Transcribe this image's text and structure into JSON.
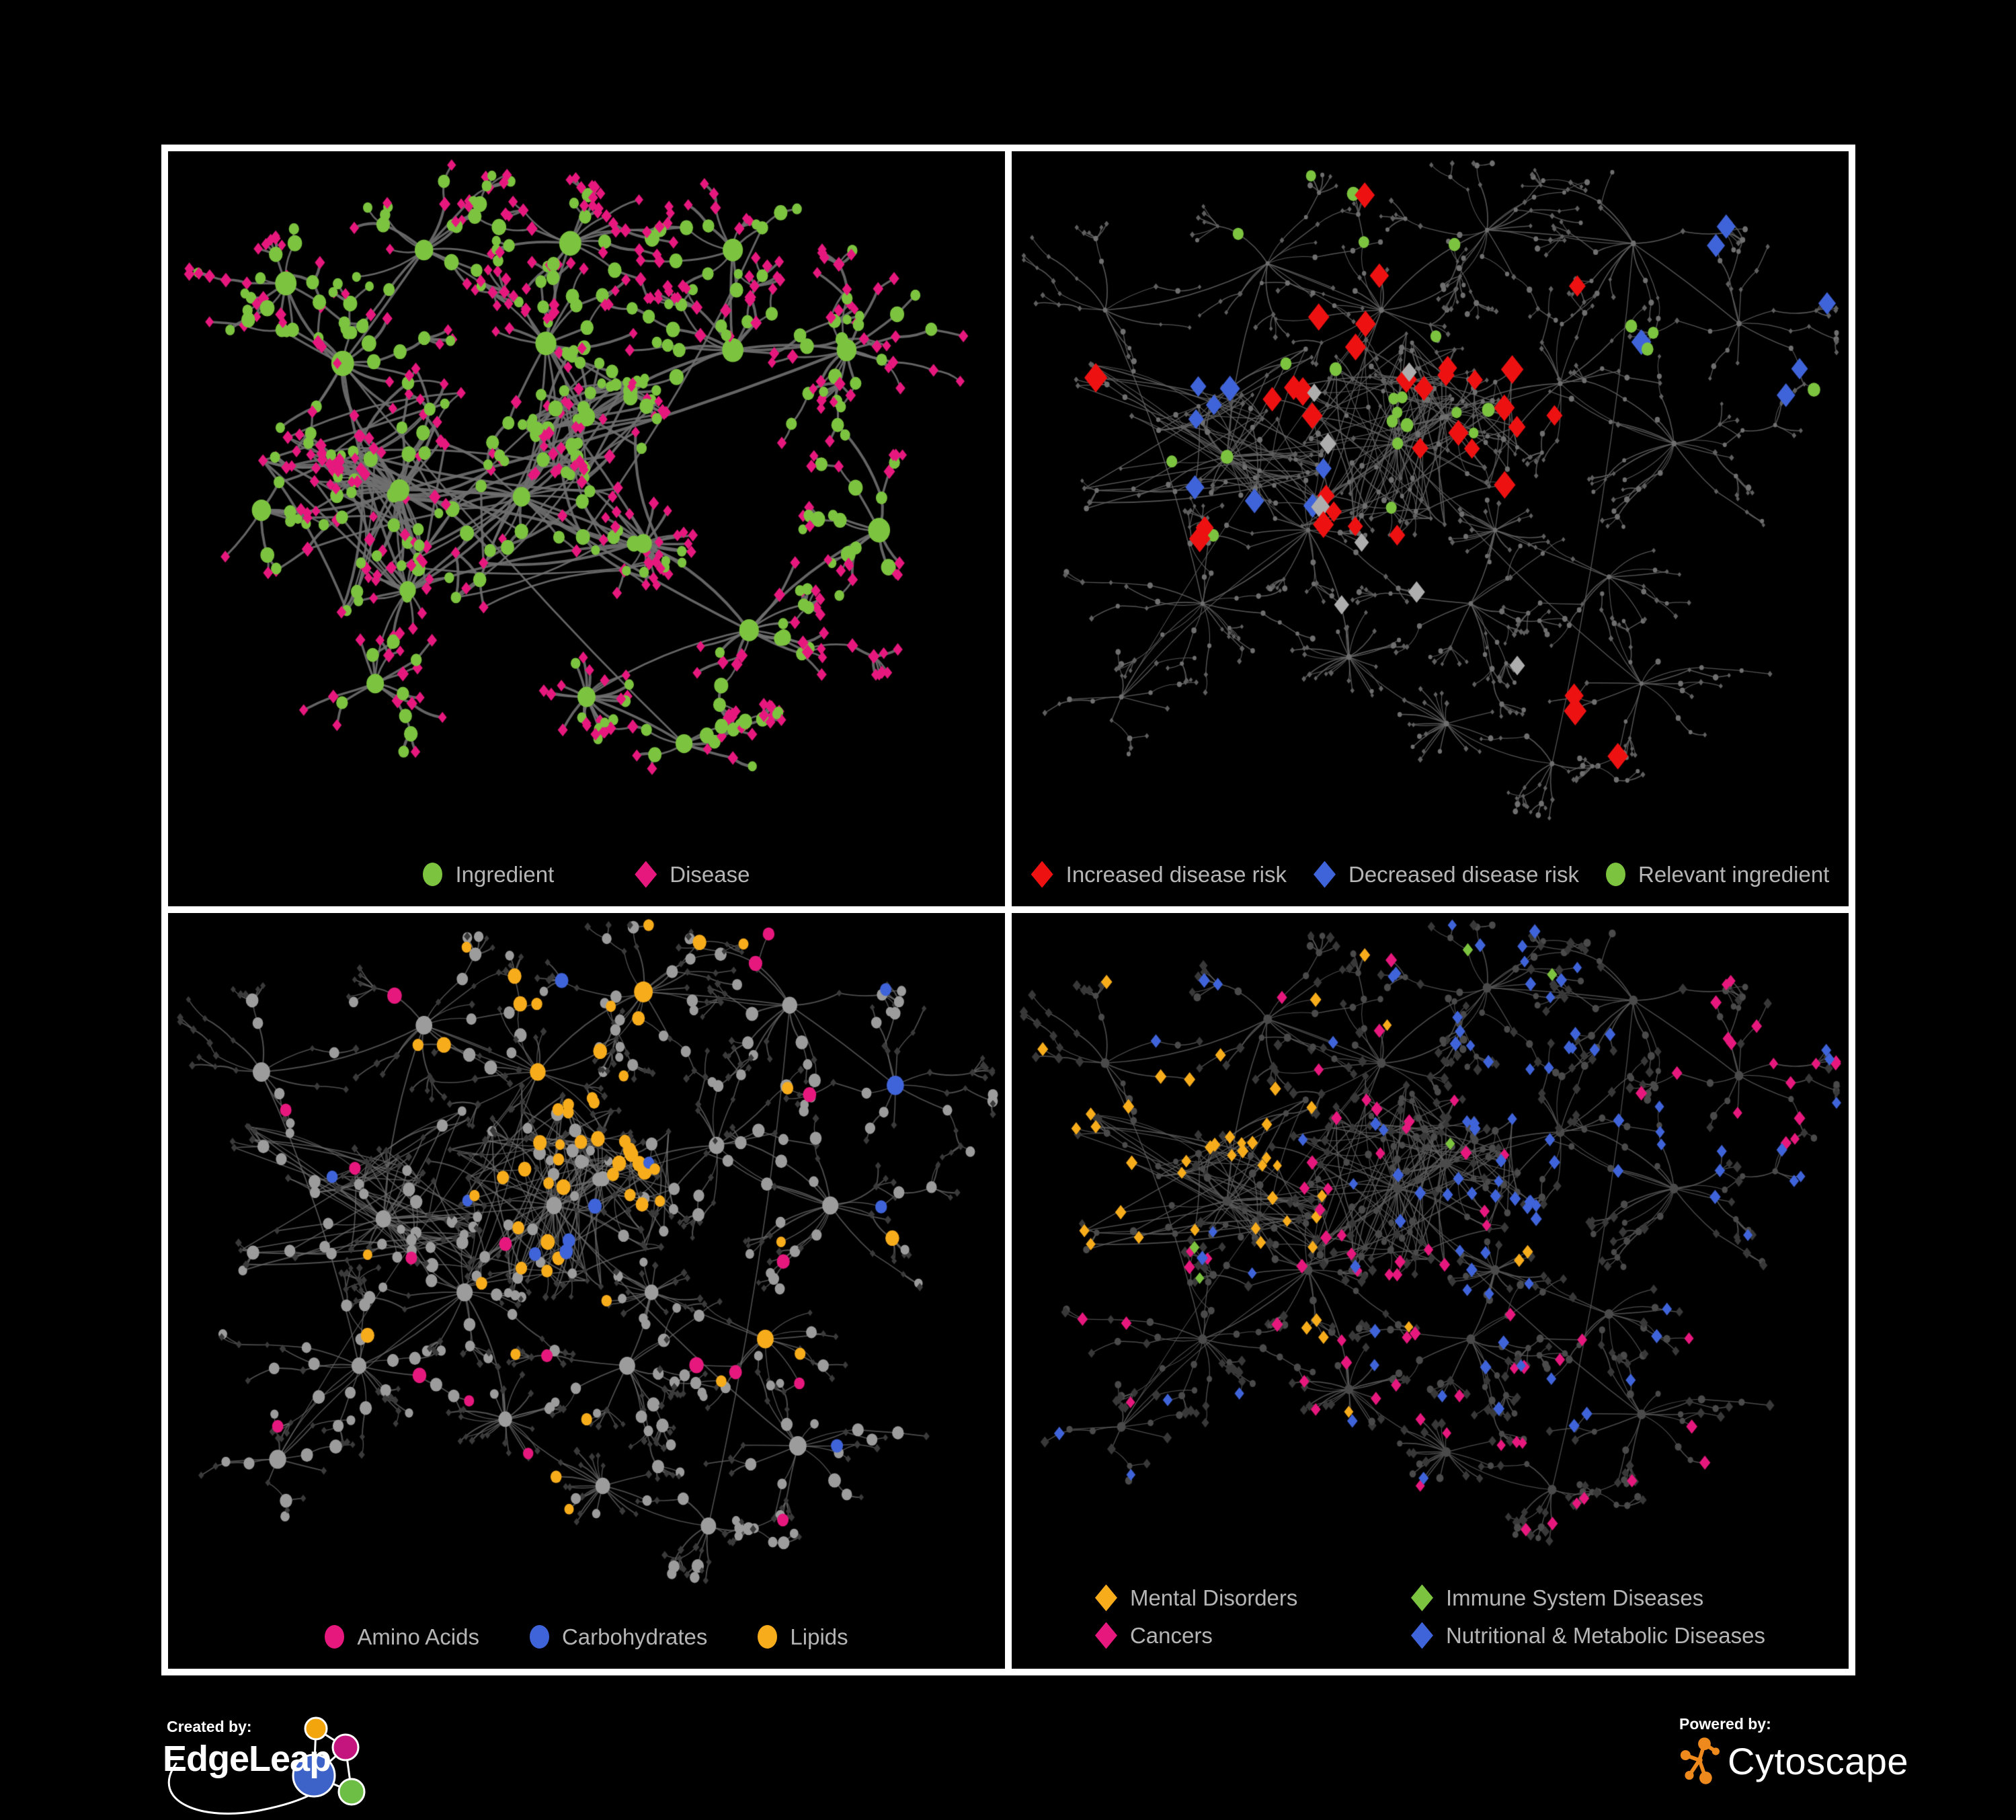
{
  "page": {
    "background": "#000000",
    "frame_color": "#ffffff",
    "legend_text_color": "#b5b5b5"
  },
  "panels": [
    {
      "id": "ingredient-disease",
      "legend": {
        "columns": 1,
        "items": [
          {
            "label": "Ingredient",
            "shape": "circle",
            "color": "#7cc33f"
          },
          {
            "label": "Disease",
            "shape": "diamond",
            "color": "#e6187d"
          }
        ]
      },
      "network": {
        "layout": "A",
        "layout_seed": 7,
        "style_seed": 101,
        "edge": {
          "color": "#6f6f6f",
          "width": 3.4,
          "opacity": 0.9
        },
        "palette": {
          "ingredient": "#7cc33f",
          "disease": "#e6187d"
        }
      }
    },
    {
      "id": "disease-risk",
      "legend": {
        "columns": 1,
        "items": [
          {
            "label": "Increased disease risk",
            "shape": "diamond",
            "color": "#ee1111"
          },
          {
            "label": "Decreased disease risk",
            "shape": "diamond",
            "color": "#3f63d8"
          },
          {
            "label": "Relevant ingredient",
            "shape": "circle",
            "color": "#7cc33f"
          }
        ]
      },
      "network": {
        "layout": "B",
        "layout_seed": 42,
        "style_seed": 202,
        "edge": {
          "color": "#616161",
          "width": 1.4,
          "opacity": 0.85
        },
        "palette": {
          "base_circle": "#6f6f6f",
          "base_diamond": "#5f5f5f",
          "increased": "#ee1111",
          "decreased": "#3f63d8",
          "unchanged": "#adadad",
          "relevant": "#7cc33f"
        }
      }
    },
    {
      "id": "ingredient-classes",
      "legend": {
        "columns": 1,
        "items": [
          {
            "label": "Amino Acids",
            "shape": "circle",
            "color": "#e6187d"
          },
          {
            "label": "Carbohydrates",
            "shape": "circle",
            "color": "#3f63d8"
          },
          {
            "label": "Lipids",
            "shape": "circle",
            "color": "#f7ac1b"
          }
        ]
      },
      "network": {
        "layout": "B",
        "layout_seed": 42,
        "style_seed": 303,
        "edge": {
          "color": "#6d6d6d",
          "width": 1.7,
          "opacity": 0.7
        },
        "palette": {
          "amino": "#e6187d",
          "carb": "#3f63d8",
          "lipid": "#f7ac1b",
          "other_circle": "#9c9c9c",
          "diamond": "#3a3a3a"
        }
      }
    },
    {
      "id": "disease-categories",
      "legend": {
        "columns": 2,
        "items": [
          {
            "label": "Mental Disorders",
            "shape": "diamond",
            "color": "#f7ac1b"
          },
          {
            "label": "Immune System Diseases",
            "shape": "diamond",
            "color": "#7cc33f"
          },
          {
            "label": "Cancers",
            "shape": "diamond",
            "color": "#e6187d"
          },
          {
            "label": "Nutritional & Metabolic Diseases",
            "shape": "diamond",
            "color": "#3f63d8"
          }
        ]
      },
      "network": {
        "layout": "B",
        "layout_seed": 42,
        "style_seed": 404,
        "edge": {
          "color": "#5e5e5e",
          "width": 1.4,
          "opacity": 0.8
        },
        "palette": {
          "mental": "#f7ac1b",
          "immune": "#7cc33f",
          "cancer": "#e6187d",
          "nutritional": "#3f63d8",
          "other_diamond": "#383838",
          "circle": "#4a4a4a"
        }
      }
    }
  ],
  "footer": {
    "created_by": {
      "label": "Created by:",
      "brand": "EdgeLeap",
      "logo": {
        "orange": "#f2a50c",
        "magenta": "#c4147d",
        "blue": "#3e63c8",
        "green": "#6dbe45",
        "stroke": "#ffffff"
      }
    },
    "powered_by": {
      "label": "Powered by:",
      "brand": "Cytoscape",
      "logo": {
        "orange": "#ee8a1d"
      }
    }
  }
}
